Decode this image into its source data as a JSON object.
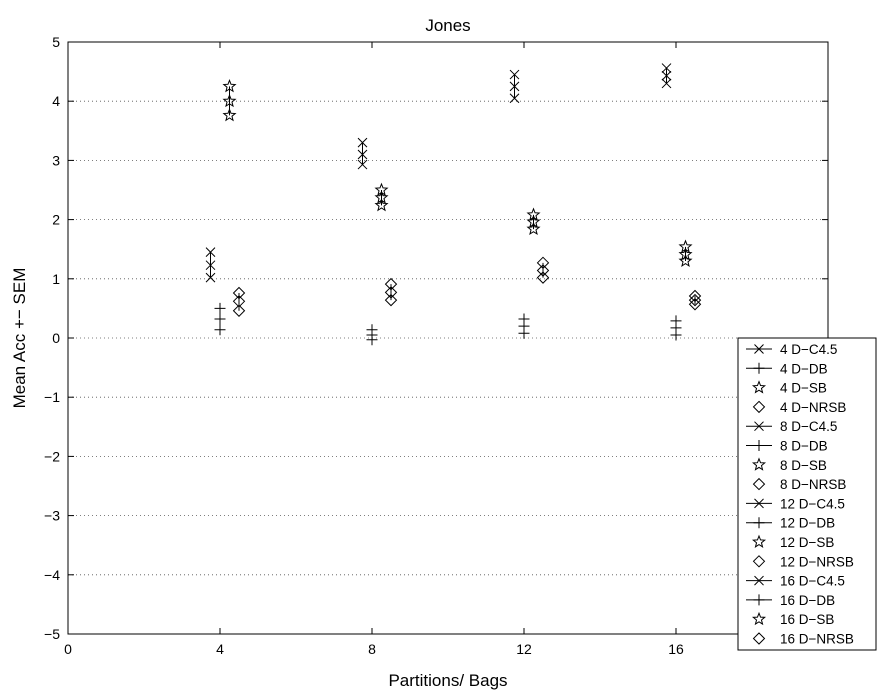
{
  "chart_data": {
    "type": "scatter",
    "title": "Jones",
    "xlabel": "Partitions/ Bags",
    "ylabel": "Mean Acc +− SEM",
    "xlim": [
      0,
      20
    ],
    "ylim": [
      -5,
      5
    ],
    "x_ticks": [
      "0",
      "4",
      "8",
      "12",
      "16"
    ],
    "y_ticks": [
      "−5",
      "−4",
      "−3",
      "−2",
      "−1",
      "0",
      "1",
      "2",
      "3",
      "4",
      "5"
    ],
    "grid": "dotted horizontal",
    "legend_position": "bottom-right",
    "series": [
      {
        "name": "4 D−C4.5",
        "marker": "x",
        "x": 3.75,
        "mean": 1.23,
        "low": 1.02,
        "high": 1.45
      },
      {
        "name": "4 D−DB",
        "marker": "+",
        "x": 4.0,
        "mean": 0.32,
        "low": 0.14,
        "high": 0.5
      },
      {
        "name": "4 D−SB",
        "marker": "star",
        "x": 4.25,
        "mean": 4.0,
        "low": 3.76,
        "high": 4.25
      },
      {
        "name": "4 D−NRSB",
        "marker": "diamond",
        "x": 4.5,
        "mean": 0.62,
        "low": 0.46,
        "high": 0.76
      },
      {
        "name": "8 D−C4.5",
        "marker": "x",
        "x": 7.75,
        "mean": 3.1,
        "low": 2.93,
        "high": 3.3
      },
      {
        "name": "8 D−DB",
        "marker": "+",
        "x": 8.0,
        "mean": 0.05,
        "low": -0.03,
        "high": 0.14
      },
      {
        "name": "8 D−SB",
        "marker": "star",
        "x": 8.25,
        "mean": 2.37,
        "low": 2.24,
        "high": 2.5
      },
      {
        "name": "8 D−NRSB",
        "marker": "diamond",
        "x": 8.5,
        "mean": 0.77,
        "low": 0.64,
        "high": 0.91
      },
      {
        "name": "12 D−C4.5",
        "marker": "x",
        "x": 11.75,
        "mean": 4.25,
        "low": 4.05,
        "high": 4.45
      },
      {
        "name": "12 D−DB",
        "marker": "+",
        "x": 12.0,
        "mean": 0.2,
        "low": 0.08,
        "high": 0.32
      },
      {
        "name": "12 D−SB",
        "marker": "star",
        "x": 12.25,
        "mean": 1.96,
        "low": 1.84,
        "high": 2.08
      },
      {
        "name": "12 D−NRSB",
        "marker": "diamond",
        "x": 12.5,
        "mean": 1.14,
        "low": 1.02,
        "high": 1.27
      },
      {
        "name": "16 D−C4.5",
        "marker": "x",
        "x": 15.75,
        "mean": 4.43,
        "low": 4.3,
        "high": 4.56
      },
      {
        "name": "16 D−DB",
        "marker": "+",
        "x": 16.0,
        "mean": 0.17,
        "low": 0.05,
        "high": 0.29
      },
      {
        "name": "16 D−SB",
        "marker": "star",
        "x": 16.25,
        "mean": 1.41,
        "low": 1.3,
        "high": 1.54
      },
      {
        "name": "16 D−NRSB",
        "marker": "diamond",
        "x": 16.5,
        "mean": 0.64,
        "low": 0.57,
        "high": 0.71
      }
    ]
  }
}
